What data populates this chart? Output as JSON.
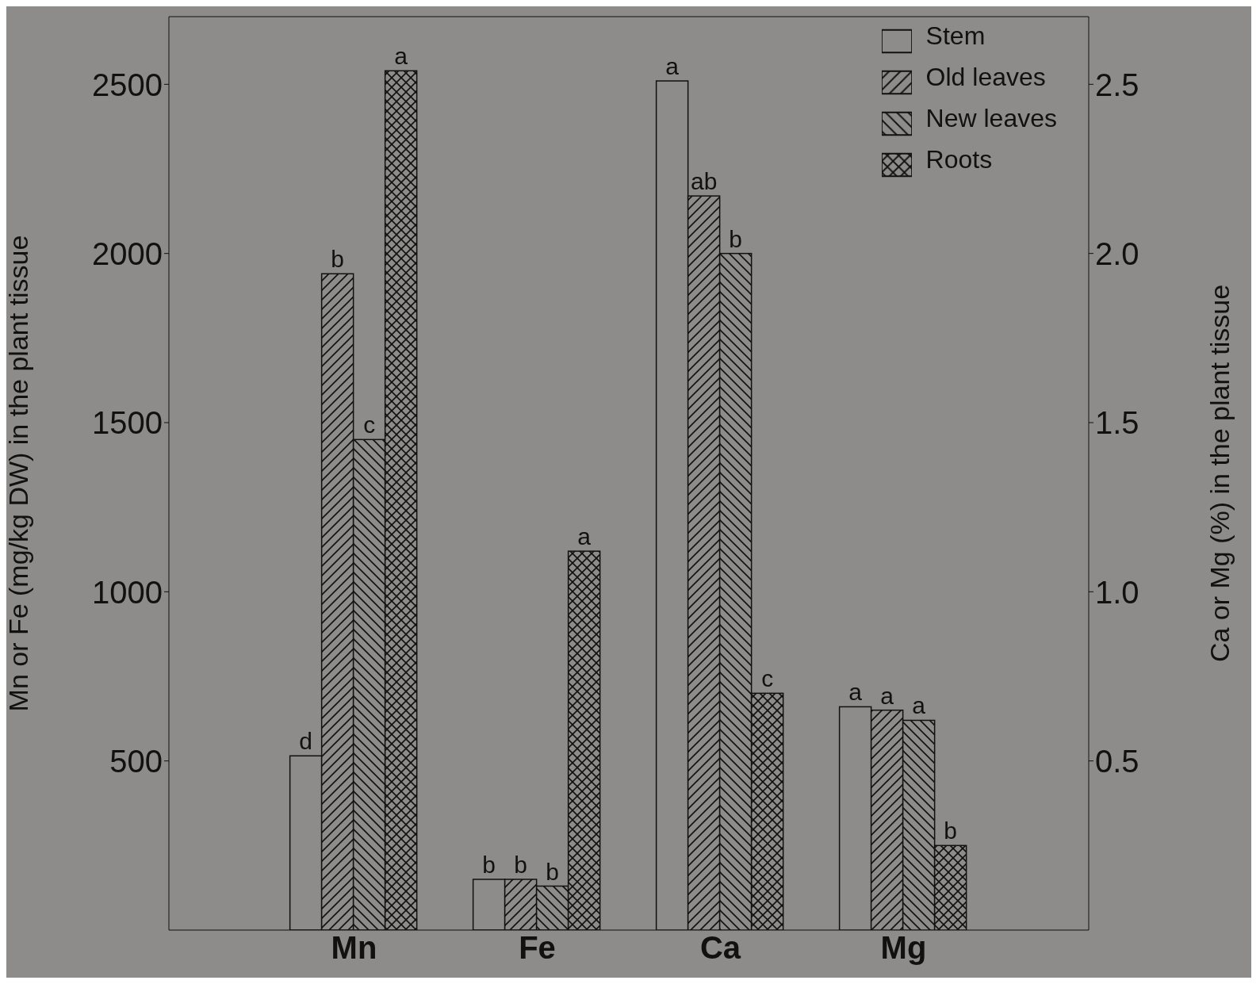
{
  "chart_data": {
    "type": "bar",
    "categories": [
      "Mn",
      "Fe",
      "Ca",
      "Mg"
    ],
    "ylabel": "Mn or Fe (mg/kg DW) in the plant tissue",
    "y2label": "Ca or Mg (%) in the plant tissue",
    "ylim": [
      0,
      2700
    ],
    "yticks": [
      500,
      1000,
      1500,
      2000,
      2500
    ],
    "y2lim": [
      0,
      2.7
    ],
    "y2ticks": [
      0.5,
      {
        "value": 1,
        "label": "1.0"
      },
      1.5,
      {
        "value": 2,
        "label": "2.0"
      },
      2.5
    ],
    "series": [
      {
        "name": "Stem",
        "color": "#111111",
        "values": [
          515,
          150,
          null,
          null
        ]
      },
      {
        "name": "Old leaves",
        "color": "#111111",
        "values": [
          1940,
          150,
          null,
          null
        ]
      },
      {
        "name": "New leaves",
        "color": "#111111",
        "values": [
          1450,
          130,
          null,
          null
        ]
      },
      {
        "name": "Roots",
        "color": "#111111",
        "values": [
          2540,
          1120,
          null,
          null
        ]
      },
      {
        "axis": "y2",
        "color": "#111111",
        "values": [
          null,
          null,
          2.51,
          0.66
        ]
      },
      {
        "axis": "y2",
        "color": "#111111",
        "values": [
          null,
          null,
          2.17,
          0.65
        ]
      },
      {
        "axis": "y2",
        "color": "#111111",
        "values": [
          null,
          null,
          2.0,
          0.62
        ]
      },
      {
        "axis": "y2",
        "color": "#111111",
        "values": [
          null,
          null,
          0.7,
          0.25
        ]
      }
    ],
    "annotations": [
      "d",
      "b",
      "c",
      "a",
      "b",
      "b",
      "b",
      "a",
      "a",
      "ab",
      "b",
      "c",
      "a",
      "a",
      "a",
      "b"
    ],
    "legend": "top right",
    "grid": false
  }
}
